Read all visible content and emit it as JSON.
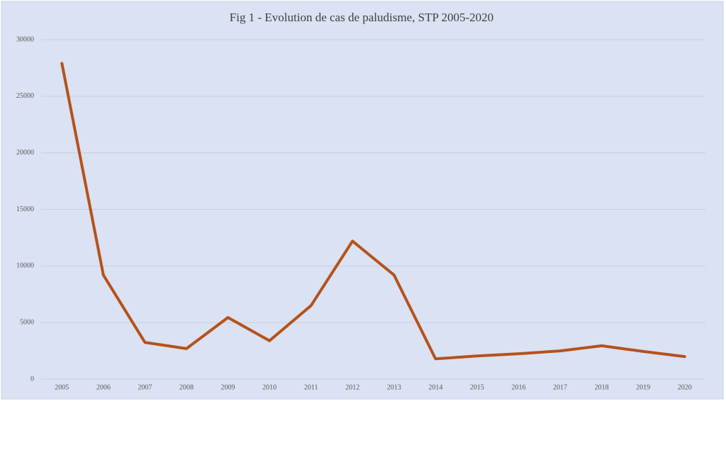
{
  "chart_data": {
    "type": "line",
    "title": "Fig 1 - Evolution de cas de paludisme, STP 2005-2020",
    "categories": [
      "2005",
      "2006",
      "2007",
      "2008",
      "2009",
      "2010",
      "2011",
      "2012",
      "2013",
      "2014",
      "2015",
      "2016",
      "2017",
      "2018",
      "2019",
      "2020"
    ],
    "series": [
      {
        "name": "Cas de paludisme",
        "color": "#b5521b",
        "values": [
          27900,
          9200,
          3250,
          2700,
          5450,
          3400,
          6500,
          12200,
          9200,
          1800,
          2050,
          2250,
          2500,
          2950,
          2450,
          2000
        ]
      }
    ],
    "ylim": [
      0,
      30000
    ],
    "yticks": [
      0,
      5000,
      10000,
      15000,
      20000,
      25000,
      30000
    ],
    "grid": true,
    "legend": false
  }
}
